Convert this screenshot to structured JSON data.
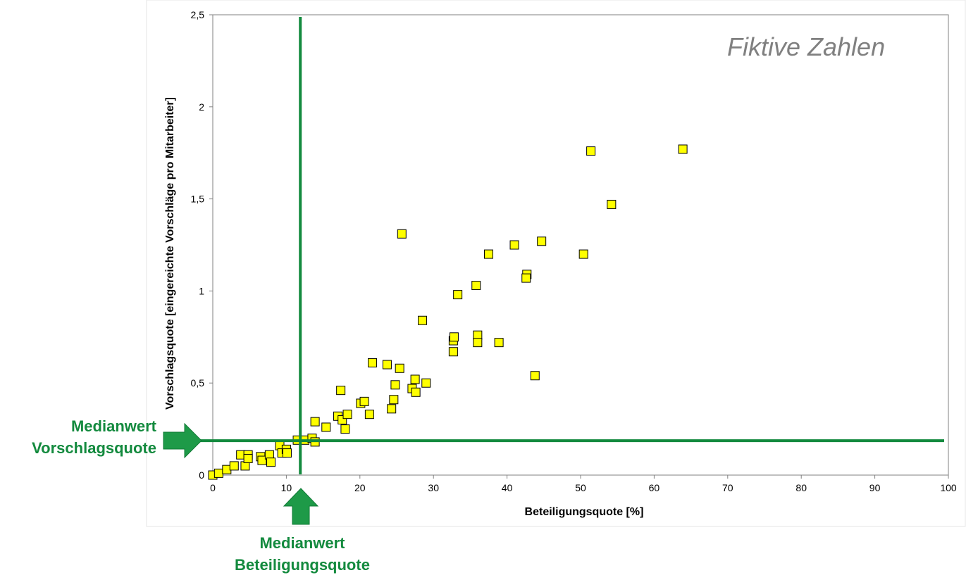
{
  "chart_data": {
    "type": "scatter",
    "title": "",
    "watermark": "Fiktive Zahlen",
    "xlabel": "Beteiligungsquote [%]",
    "ylabel": "Vorschlagsquote [eingereichte Vorschläge pro Mitarbeiter]",
    "xlim": [
      0,
      100
    ],
    "ylim": [
      0,
      2.5
    ],
    "xticks": [
      "0",
      "10",
      "20",
      "30",
      "40",
      "50",
      "60",
      "70",
      "80",
      "90",
      "100"
    ],
    "yticks": [
      "0",
      "0,5",
      "1",
      "1,5",
      "2",
      "2,5"
    ],
    "grid": false,
    "marker": {
      "shape": "square",
      "fill": "#ffff00",
      "stroke": "#000000"
    },
    "points": [
      [
        0,
        0
      ],
      [
        0.8,
        0.01
      ],
      [
        1.9,
        0.03
      ],
      [
        2.9,
        0.05
      ],
      [
        3.8,
        0.11
      ],
      [
        4.4,
        0.05
      ],
      [
        4.8,
        0.11
      ],
      [
        4.8,
        0.09
      ],
      [
        6.5,
        0.1
      ],
      [
        6.7,
        0.08
      ],
      [
        7.7,
        0.11
      ],
      [
        7.9,
        0.07
      ],
      [
        9.1,
        0.16
      ],
      [
        9.4,
        0.12
      ],
      [
        10.0,
        0.14
      ],
      [
        10.1,
        0.12
      ],
      [
        11.5,
        0.19
      ],
      [
        12.5,
        0.19
      ],
      [
        13.5,
        0.2
      ],
      [
        13.9,
        0.18
      ],
      [
        13.9,
        0.29
      ],
      [
        15.4,
        0.26
      ],
      [
        17.0,
        0.32
      ],
      [
        17.4,
        0.46
      ],
      [
        17.6,
        0.3
      ],
      [
        18.0,
        0.25
      ],
      [
        18.3,
        0.33
      ],
      [
        20.1,
        0.39
      ],
      [
        20.6,
        0.4
      ],
      [
        21.3,
        0.33
      ],
      [
        21.7,
        0.61
      ],
      [
        23.7,
        0.6
      ],
      [
        24.3,
        0.36
      ],
      [
        24.6,
        0.41
      ],
      [
        24.8,
        0.49
      ],
      [
        25.4,
        0.58
      ],
      [
        25.7,
        1.31
      ],
      [
        27.1,
        0.47
      ],
      [
        27.5,
        0.52
      ],
      [
        27.6,
        0.45
      ],
      [
        28.5,
        0.84
      ],
      [
        29.0,
        0.5
      ],
      [
        32.7,
        0.67
      ],
      [
        32.7,
        0.73
      ],
      [
        32.8,
        0.75
      ],
      [
        33.3,
        0.98
      ],
      [
        35.8,
        1.03
      ],
      [
        36.0,
        0.76
      ],
      [
        36.0,
        0.72
      ],
      [
        37.5,
        1.2
      ],
      [
        38.9,
        0.72
      ],
      [
        41.0,
        1.25
      ],
      [
        42.7,
        1.09
      ],
      [
        42.6,
        1.07
      ],
      [
        43.8,
        0.54
      ],
      [
        44.7,
        1.27
      ],
      [
        50.4,
        1.2
      ],
      [
        51.4,
        1.76
      ],
      [
        54.2,
        1.47
      ],
      [
        63.9,
        1.77
      ]
    ],
    "reference_lines": {
      "color": "#138a3e",
      "median_x": 11.9,
      "median_y": 0.187
    },
    "annotations": {
      "median_y_line1": "Medianwert",
      "median_y_line2": "Vorschlagsquote",
      "median_x_line1": "Medianwert",
      "median_x_line2": "Beteiligungsquote"
    }
  }
}
